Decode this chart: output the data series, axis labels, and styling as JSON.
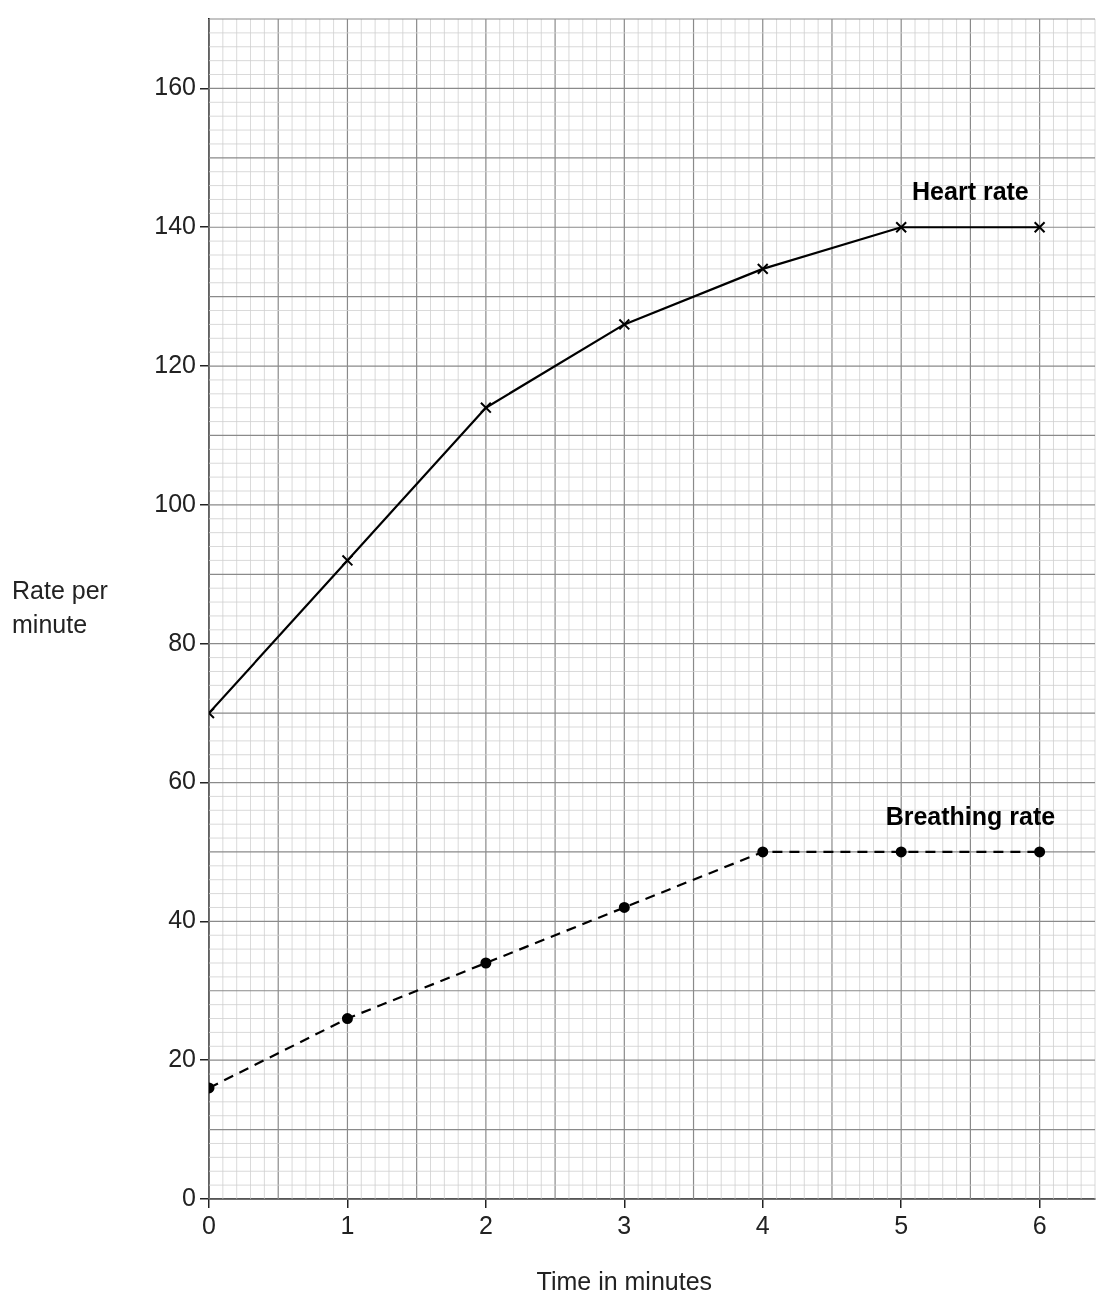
{
  "chart_data": {
    "type": "line",
    "xlabel": "Time in minutes",
    "ylabel": "Rate per minute",
    "x": [
      0,
      1,
      2,
      3,
      4,
      5,
      6
    ],
    "series": [
      {
        "name": "Heart rate",
        "color": "#000000",
        "values": [
          70,
          92,
          114,
          126,
          134,
          140,
          140
        ],
        "marker": "cross",
        "line_style": "solid"
      },
      {
        "name": "Breathing rate",
        "color": "#000000",
        "values": [
          16,
          26,
          34,
          42,
          50,
          50,
          50
        ],
        "marker": "circle",
        "line_style": "dashed"
      }
    ],
    "xlim": [
      0,
      6.4
    ],
    "ylim": [
      0,
      170
    ],
    "xticks": [
      0,
      1,
      2,
      3,
      4,
      5,
      6
    ],
    "yticks": [
      0,
      20,
      40,
      60,
      80,
      100,
      120,
      140,
      160
    ],
    "grid": true,
    "legend": false
  }
}
